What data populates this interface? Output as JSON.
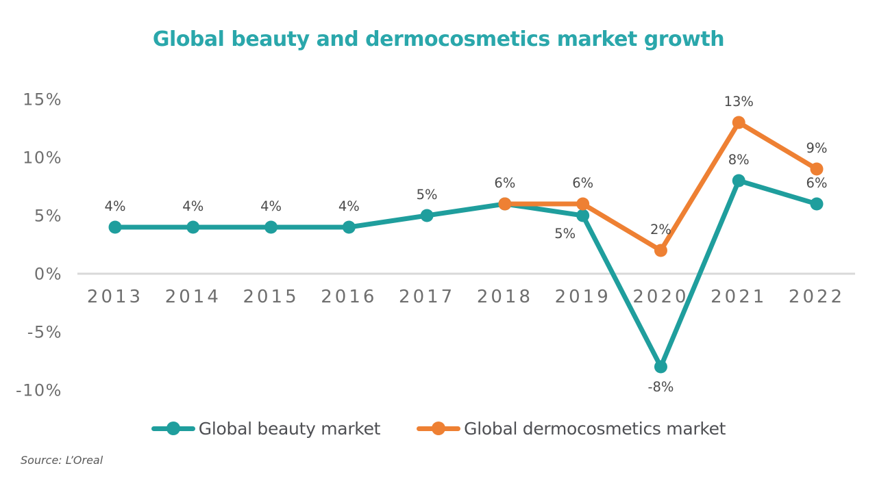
{
  "page": {
    "title": "Global beauty and dermocosmetics market growth",
    "source": "Source: L’Oreal"
  },
  "colors": {
    "title": "#2AA7AB",
    "beauty_series": "#1F9E9D",
    "dermo_series": "#EE8033",
    "zero_axis_line": "#D9D9D9",
    "axis_tick_labels": "#6E6E6E",
    "data_labels": "#4A4A4A",
    "legend_text": "#4E4F53",
    "source_text": "#595959",
    "background": "#FFFFFF"
  },
  "chart_data": {
    "type": "line",
    "title": "Global beauty and dermocosmetics market growth",
    "categories": [
      "2013",
      "2014",
      "2015",
      "2016",
      "2017",
      "2018",
      "2019",
      "2020",
      "2021",
      "2022"
    ],
    "y_axis": {
      "tick_labels": [
        "15%",
        "10%",
        "5%",
        "0%",
        "-5%",
        "-10%"
      ],
      "tick_values": [
        15,
        10,
        5,
        0,
        -5,
        -10
      ],
      "unit": "%",
      "grid": false,
      "zero_line": true,
      "ylim": [
        -12,
        17
      ]
    },
    "series": [
      {
        "name": "Global beauty market",
        "color": "#1F9E9D",
        "values": [
          4,
          4,
          4,
          4,
          5,
          6,
          5,
          -8,
          8,
          6
        ],
        "data_labels": [
          "4%",
          "4%",
          "4%",
          "4%",
          "5%",
          "6%",
          "5%",
          "-8%",
          "8%",
          "6%"
        ],
        "label_placement": [
          "above",
          "above",
          "above",
          "above",
          "above",
          "above",
          "below-left",
          "below",
          "above",
          "above"
        ]
      },
      {
        "name": "Global dermocosmetics market",
        "color": "#EE8033",
        "values": [
          null,
          null,
          null,
          null,
          null,
          6,
          6,
          2,
          13,
          9
        ],
        "data_labels": [
          null,
          null,
          null,
          null,
          null,
          null,
          "6%",
          "2%",
          "13%",
          "9%"
        ],
        "label_placement": [
          null,
          null,
          null,
          null,
          null,
          null,
          "above",
          "above",
          "above",
          "above"
        ]
      }
    ],
    "legend_position": "bottom",
    "source": "Source: L’Oreal"
  }
}
